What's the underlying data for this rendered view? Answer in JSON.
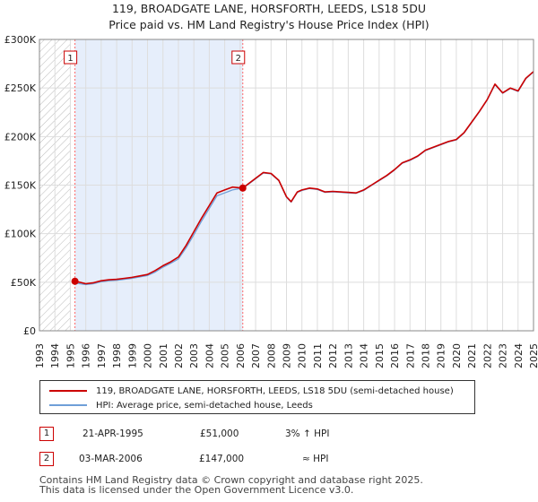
{
  "title_line1": "119, BROADGATE LANE, HORSFORTH, LEEDS, LS18 5DU",
  "title_line2": "Price paid vs. HM Land Registry's House Price Index (HPI)",
  "colors": {
    "property": "#cc0000",
    "hpi": "#6f9fd8",
    "shade": "#e6eefb",
    "hatch": "#bbbbbb",
    "marker_line": "#ff6666"
  },
  "chart_data": {
    "type": "line",
    "xlim": [
      1993,
      2025
    ],
    "ylim": [
      0,
      300000
    ],
    "xticks": [
      "1993",
      "1994",
      "1995",
      "1996",
      "1997",
      "1998",
      "1999",
      "2000",
      "2001",
      "2002",
      "2003",
      "2004",
      "2005",
      "2006",
      "2007",
      "2008",
      "2009",
      "2010",
      "2011",
      "2012",
      "2013",
      "2014",
      "2015",
      "2016",
      "2017",
      "2018",
      "2019",
      "2020",
      "2021",
      "2022",
      "2023",
      "2024",
      "2025"
    ],
    "yticks": [
      {
        "value": 0,
        "label": "£0"
      },
      {
        "value": 50000,
        "label": "£50K"
      },
      {
        "value": 100000,
        "label": "£100K"
      },
      {
        "value": 150000,
        "label": "£150K"
      },
      {
        "value": 200000,
        "label": "£200K"
      },
      {
        "value": 250000,
        "label": "£250K"
      },
      {
        "value": 300000,
        "label": "£300K"
      }
    ],
    "hatched_until": 1995.0,
    "shaded_span": [
      1995.3,
      2006.17
    ],
    "series": [
      {
        "name": "119, BROADGATE LANE, HORSFORTH, LEEDS, LS18 5DU (semi-detached house)",
        "color": "#cc0000",
        "points": [
          [
            1995.3,
            51000
          ],
          [
            1995.6,
            50000
          ],
          [
            1996,
            48500
          ],
          [
            1996.5,
            49500
          ],
          [
            1997,
            51500
          ],
          [
            1997.5,
            52500
          ],
          [
            1998,
            53000
          ],
          [
            1998.5,
            54000
          ],
          [
            1999,
            55000
          ],
          [
            1999.5,
            56500
          ],
          [
            2000,
            58000
          ],
          [
            2000.5,
            62000
          ],
          [
            2001,
            67000
          ],
          [
            2001.5,
            71000
          ],
          [
            2002,
            76000
          ],
          [
            2002.5,
            88000
          ],
          [
            2003,
            102000
          ],
          [
            2003.5,
            116000
          ],
          [
            2004,
            129000
          ],
          [
            2004.5,
            142000
          ],
          [
            2005,
            145000
          ],
          [
            2005.5,
            148000
          ],
          [
            2006.17,
            147000
          ],
          [
            2006.5,
            151000
          ],
          [
            2007,
            157000
          ],
          [
            2007.5,
            163000
          ],
          [
            2008,
            162000
          ],
          [
            2008.5,
            155000
          ],
          [
            2009,
            138000
          ],
          [
            2009.3,
            133000
          ],
          [
            2009.7,
            143000
          ],
          [
            2010,
            145000
          ],
          [
            2010.5,
            147000
          ],
          [
            2011,
            146000
          ],
          [
            2011.5,
            143000
          ],
          [
            2012,
            143500
          ],
          [
            2012.5,
            143000
          ],
          [
            2013,
            142500
          ],
          [
            2013.5,
            142000
          ],
          [
            2014,
            145000
          ],
          [
            2014.5,
            150000
          ],
          [
            2015,
            155000
          ],
          [
            2015.5,
            160000
          ],
          [
            2016,
            166000
          ],
          [
            2016.5,
            173000
          ],
          [
            2017,
            176000
          ],
          [
            2017.5,
            180000
          ],
          [
            2018,
            186000
          ],
          [
            2018.5,
            189000
          ],
          [
            2019,
            192000
          ],
          [
            2019.5,
            195000
          ],
          [
            2020,
            197000
          ],
          [
            2020.5,
            204000
          ],
          [
            2021,
            215000
          ],
          [
            2021.5,
            226000
          ],
          [
            2022,
            238000
          ],
          [
            2022.5,
            254000
          ],
          [
            2023,
            245000
          ],
          [
            2023.5,
            250000
          ],
          [
            2024,
            247000
          ],
          [
            2024.5,
            260000
          ],
          [
            2025,
            267000
          ]
        ]
      },
      {
        "name": "HPI: Average price, semi-detached house, Leeds",
        "color": "#6f9fd8",
        "points": [
          [
            1995.3,
            49500
          ],
          [
            1995.6,
            48500
          ],
          [
            1996,
            47500
          ],
          [
            1996.5,
            48500
          ],
          [
            1997,
            50500
          ],
          [
            1997.5,
            51500
          ],
          [
            1998,
            52000
          ],
          [
            1998.5,
            53000
          ],
          [
            1999,
            54000
          ],
          [
            1999.5,
            55500
          ],
          [
            2000,
            57000
          ],
          [
            2000.5,
            60500
          ],
          [
            2001,
            65500
          ],
          [
            2001.5,
            69500
          ],
          [
            2002,
            74000
          ],
          [
            2002.5,
            85500
          ],
          [
            2003,
            99000
          ],
          [
            2003.5,
            113000
          ],
          [
            2004,
            126000
          ],
          [
            2004.5,
            139000
          ],
          [
            2005,
            142000
          ],
          [
            2005.5,
            145000
          ],
          [
            2006.17,
            147000
          ],
          [
            2006.5,
            150500
          ],
          [
            2007,
            156500
          ],
          [
            2007.5,
            162500
          ],
          [
            2008,
            161500
          ],
          [
            2008.5,
            154500
          ],
          [
            2009,
            137500
          ],
          [
            2009.3,
            132500
          ],
          [
            2009.7,
            142500
          ],
          [
            2010,
            144500
          ],
          [
            2010.5,
            146500
          ],
          [
            2011,
            145500
          ],
          [
            2011.5,
            142500
          ],
          [
            2012,
            143000
          ],
          [
            2012.5,
            142500
          ],
          [
            2013,
            142000
          ],
          [
            2013.5,
            141500
          ],
          [
            2014,
            144500
          ],
          [
            2014.5,
            149500
          ],
          [
            2015,
            154500
          ],
          [
            2015.5,
            159500
          ],
          [
            2016,
            165500
          ],
          [
            2016.5,
            172500
          ],
          [
            2017,
            175500
          ],
          [
            2017.5,
            179500
          ],
          [
            2018,
            185500
          ],
          [
            2018.5,
            188500
          ],
          [
            2019,
            191500
          ],
          [
            2019.5,
            194500
          ],
          [
            2020,
            196500
          ],
          [
            2020.5,
            203500
          ],
          [
            2021,
            214500
          ],
          [
            2021.5,
            225500
          ],
          [
            2022,
            237500
          ],
          [
            2022.5,
            253500
          ],
          [
            2023,
            244500
          ],
          [
            2023.5,
            249500
          ],
          [
            2024,
            246500
          ],
          [
            2024.5,
            259500
          ],
          [
            2025,
            266500
          ]
        ]
      }
    ],
    "sales": [
      {
        "label": "1",
        "x": 1995.3,
        "price": 51000
      },
      {
        "label": "2",
        "x": 2006.17,
        "price": 147000
      }
    ]
  },
  "legend": {
    "property": "119, BROADGATE LANE, HORSFORTH, LEEDS, LS18 5DU (semi-detached house)",
    "hpi": "HPI: Average price, semi-detached house, Leeds"
  },
  "transactions": [
    {
      "num": "1",
      "date": "21-APR-1995",
      "price": "£51,000",
      "vs": "3% ↑ HPI"
    },
    {
      "num": "2",
      "date": "03-MAR-2006",
      "price": "£147,000",
      "vs": "≈ HPI"
    }
  ],
  "footer": {
    "line1": "Contains HM Land Registry data © Crown copyright and database right 2025.",
    "line2": "This data is licensed under the Open Government Licence v3.0."
  }
}
